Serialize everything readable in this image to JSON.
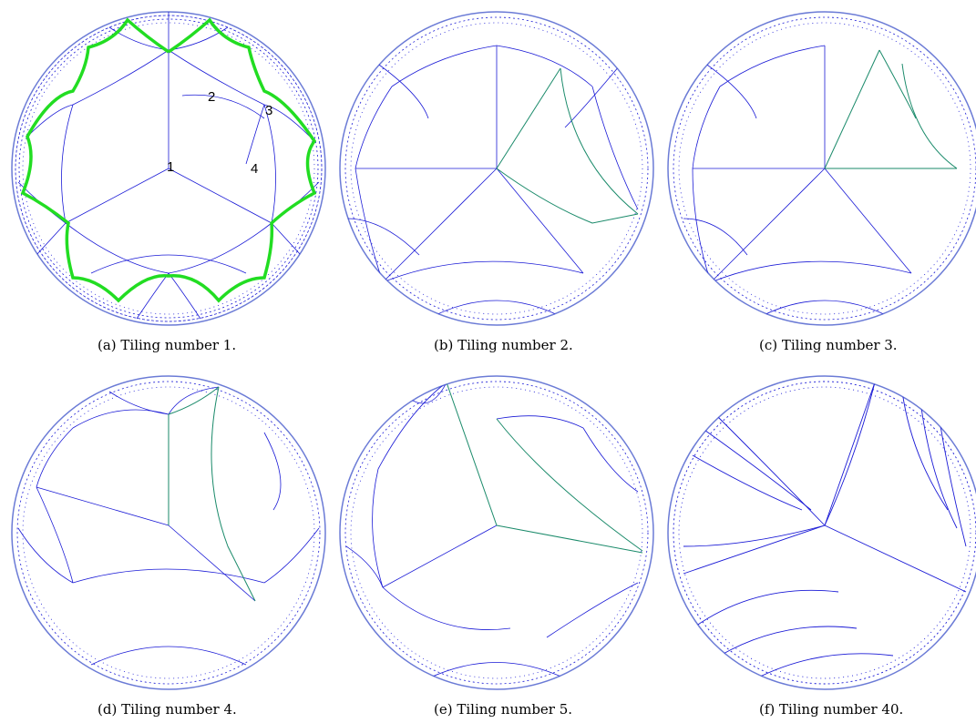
{
  "panels": [
    {
      "id": "a",
      "caption": "(a) Tiling number 1."
    },
    {
      "id": "b",
      "caption": "(b) Tiling number 2."
    },
    {
      "id": "c",
      "caption": "(c) Tiling number 3."
    },
    {
      "id": "d",
      "caption": "(d) Tiling number 4."
    },
    {
      "id": "e",
      "caption": "(e) Tiling number 5."
    },
    {
      "id": "f",
      "caption": "(f) Tiling number 40."
    }
  ],
  "panel_a_labels": {
    "l1": "1",
    "l2": "2",
    "l3": "3",
    "l4": "4"
  },
  "colors": {
    "tiling_lines": "#1a1ad6",
    "highlight_boundary": "#22dd22",
    "highlight_path": "#1a8a6a",
    "disk_edge": "#6b7bd6"
  }
}
